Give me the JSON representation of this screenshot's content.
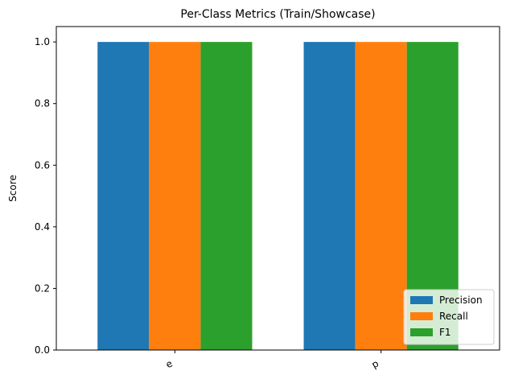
{
  "chart_data": {
    "type": "bar",
    "title": "Per-Class Metrics (Train/Showcase)",
    "xlabel": "",
    "ylabel": "Score",
    "categories": [
      "e",
      "p"
    ],
    "series": [
      {
        "name": "Precision",
        "color": "#1f77b4",
        "values": [
          1.0,
          1.0
        ]
      },
      {
        "name": "Recall",
        "color": "#ff7f0e",
        "values": [
          1.0,
          1.0
        ]
      },
      {
        "name": "F1",
        "color": "#2ca02c",
        "values": [
          1.0,
          1.0
        ]
      }
    ],
    "ylim": [
      0,
      1.05
    ],
    "yticks": [
      "0.0",
      "0.2",
      "0.4",
      "0.6",
      "0.8",
      "1.0"
    ],
    "ytick_values": [
      0.0,
      0.2,
      0.4,
      0.6,
      0.8,
      1.0
    ],
    "grid": false,
    "legend_position": "lower-right"
  }
}
